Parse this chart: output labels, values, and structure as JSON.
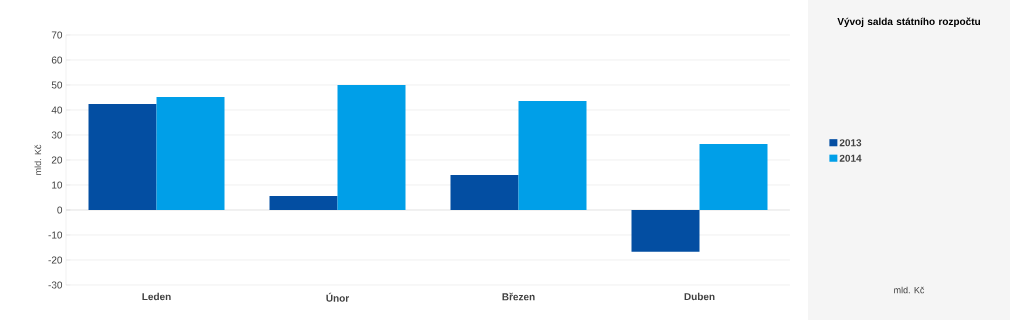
{
  "chart_data": {
    "type": "bar",
    "title": "Vývoj salda státního rozpočtu",
    "ylabel": "mld. Kč",
    "categories": [
      "Leden",
      "Únor",
      "Březen",
      "Duben"
    ],
    "series": [
      {
        "name": "2013",
        "color": "#034ea2",
        "values": [
          42.4,
          5.6,
          14,
          -16.7
        ]
      },
      {
        "name": "2014",
        "color": "#009fe8",
        "values": [
          45.2,
          50,
          43.6,
          26.4
        ]
      }
    ],
    "ylim": [
      -30,
      70
    ],
    "yticks": [
      -30,
      -20,
      -10,
      0,
      10,
      20,
      30,
      40,
      50,
      60,
      70
    ],
    "grid": "y",
    "legend": "right",
    "annotations": [
      "mld. Kč"
    ]
  }
}
